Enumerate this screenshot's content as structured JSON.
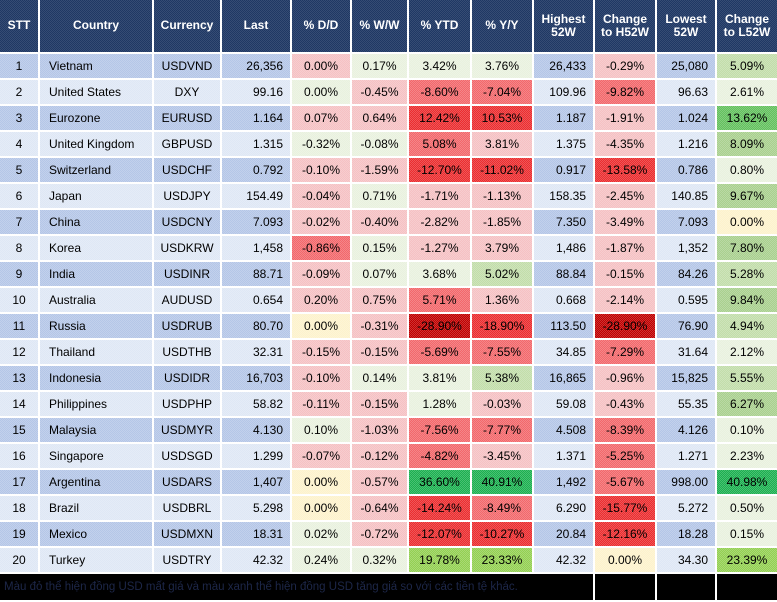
{
  "palette": {
    "header_bg": "#1F3864",
    "row_odd": "#B4C6E7",
    "row_even": "#DEE7F5",
    "r0": "#F5C1C3",
    "r1": "#F2686B",
    "r2": "#EB2D2F",
    "r3": "#C00000",
    "g0": "#E9F1DE",
    "g1": "#C2DDAA",
    "g2": "#A9D08E",
    "g3": "#1CB050",
    "g4": "#63C15E",
    "lime": "#93D052",
    "y0": "#FDF2CC"
  },
  "footer": {
    "note": "Màu đỏ thể hiện đồng USD mất giá và màu xanh thể hiện đồng USD tăng giá so với các tiền tệ khác."
  },
  "chart_data": {
    "type": "table",
    "columns": [
      "STT",
      "Country",
      "Currency",
      "Last",
      "% D/D",
      "% W/W",
      "% YTD",
      "% Y/Y",
      "Highest 52W",
      "Change to H52W",
      "Lowest 52W",
      "Change to L52W"
    ],
    "rows": [
      {
        "values": [
          "1",
          "Vietnam",
          "USDVND",
          "26,356",
          "0.00%",
          "0.17%",
          "3.42%",
          "3.76%",
          "26,433",
          "-0.29%",
          "25,080",
          "5.09%"
        ],
        "heat": {
          "4": "r0",
          "5": "g0",
          "6": "g0",
          "7": "g0",
          "9": "r0",
          "11": "g1"
        }
      },
      {
        "values": [
          "2",
          "United States",
          "DXY",
          "99.16",
          "0.00%",
          "-0.45%",
          "-8.60%",
          "-7.04%",
          "109.96",
          "-9.82%",
          "96.63",
          "2.61%"
        ],
        "heat": {
          "4": "g0",
          "5": "r0",
          "6": "r1",
          "7": "r1",
          "9": "r1",
          "11": "g0"
        }
      },
      {
        "values": [
          "3",
          "Eurozone",
          "EURUSD",
          "1.164",
          "0.07%",
          "0.64%",
          "12.42%",
          "10.53%",
          "1.187",
          "-1.91%",
          "1.024",
          "13.62%"
        ],
        "heat": {
          "4": "r0",
          "5": "r0",
          "6": "r2",
          "7": "r2",
          "9": "r0",
          "11": "g4"
        }
      },
      {
        "values": [
          "4",
          "United Kingdom",
          "GBPUSD",
          "1.315",
          "-0.32%",
          "-0.08%",
          "5.08%",
          "3.81%",
          "1.375",
          "-4.35%",
          "1.216",
          "8.09%"
        ],
        "heat": {
          "4": "g0",
          "5": "g0",
          "6": "r1",
          "7": "r0",
          "9": "r0",
          "11": "g2"
        }
      },
      {
        "values": [
          "5",
          "Switzerland",
          "USDCHF",
          "0.792",
          "-0.10%",
          "-1.59%",
          "-12.70%",
          "-11.02%",
          "0.917",
          "-13.58%",
          "0.786",
          "0.80%"
        ],
        "heat": {
          "4": "r0",
          "5": "r0",
          "6": "r2",
          "7": "r2",
          "9": "r2",
          "11": "g0"
        }
      },
      {
        "values": [
          "6",
          "Japan",
          "USDJPY",
          "154.49",
          "-0.04%",
          "0.71%",
          "-1.71%",
          "-1.13%",
          "158.35",
          "-2.45%",
          "140.85",
          "9.67%"
        ],
        "heat": {
          "4": "r0",
          "5": "g0",
          "6": "r0",
          "7": "r0",
          "9": "r0",
          "11": "g2"
        }
      },
      {
        "values": [
          "7",
          "China",
          "USDCNY",
          "7.093",
          "-0.02%",
          "-0.40%",
          "-2.82%",
          "-1.85%",
          "7.350",
          "-3.49%",
          "7.093",
          "0.00%"
        ],
        "heat": {
          "4": "r0",
          "5": "r0",
          "6": "r0",
          "7": "r0",
          "9": "r0",
          "11": "y0"
        }
      },
      {
        "values": [
          "8",
          "Korea",
          "USDKRW",
          "1,458",
          "-0.86%",
          "0.15%",
          "-1.27%",
          "3.79%",
          "1,486",
          "-1.87%",
          "1,352",
          "7.80%"
        ],
        "heat": {
          "4": "r1",
          "5": "g0",
          "6": "r0",
          "7": "r0",
          "9": "r0",
          "11": "g2"
        }
      },
      {
        "values": [
          "9",
          "India",
          "USDINR",
          "88.71",
          "-0.09%",
          "0.07%",
          "3.68%",
          "5.02%",
          "88.84",
          "-0.15%",
          "84.26",
          "5.28%"
        ],
        "heat": {
          "4": "r0",
          "5": "g0",
          "6": "g0",
          "7": "g1",
          "9": "r0",
          "11": "g1"
        }
      },
      {
        "values": [
          "10",
          "Australia",
          "AUDUSD",
          "0.654",
          "0.20%",
          "0.75%",
          "5.71%",
          "1.36%",
          "0.668",
          "-2.14%",
          "0.595",
          "9.84%"
        ],
        "heat": {
          "4": "r0",
          "5": "r0",
          "6": "r1",
          "7": "r0",
          "9": "r0",
          "11": "g2"
        }
      },
      {
        "values": [
          "11",
          "Russia",
          "USDRUB",
          "80.70",
          "0.00%",
          "-0.31%",
          "-28.90%",
          "-18.90%",
          "113.50",
          "-28.90%",
          "76.90",
          "4.94%"
        ],
        "heat": {
          "4": "y0",
          "5": "r0",
          "6": "r3",
          "7": "r2",
          "9": "r3",
          "11": "g1"
        }
      },
      {
        "values": [
          "12",
          "Thailand",
          "USDTHB",
          "32.31",
          "-0.15%",
          "-0.15%",
          "-5.69%",
          "-7.55%",
          "34.85",
          "-7.29%",
          "31.64",
          "2.12%"
        ],
        "heat": {
          "4": "r0",
          "5": "r0",
          "6": "r1",
          "7": "r1",
          "9": "r1",
          "11": "g0"
        }
      },
      {
        "values": [
          "13",
          "Indonesia",
          "USDIDR",
          "16,703",
          "-0.10%",
          "0.14%",
          "3.81%",
          "5.38%",
          "16,865",
          "-0.96%",
          "15,825",
          "5.55%"
        ],
        "heat": {
          "4": "r0",
          "5": "g0",
          "6": "g0",
          "7": "g1",
          "9": "r0",
          "11": "g1"
        }
      },
      {
        "values": [
          "14",
          "Philippines",
          "USDPHP",
          "58.82",
          "-0.11%",
          "-0.15%",
          "1.28%",
          "-0.03%",
          "59.08",
          "-0.43%",
          "55.35",
          "6.27%"
        ],
        "heat": {
          "4": "r0",
          "5": "r0",
          "6": "g0",
          "7": "r0",
          "9": "r0",
          "11": "g2"
        }
      },
      {
        "values": [
          "15",
          "Malaysia",
          "USDMYR",
          "4.130",
          "0.10%",
          "-1.03%",
          "-7.56%",
          "-7.77%",
          "4.508",
          "-8.39%",
          "4.126",
          "0.10%"
        ],
        "heat": {
          "4": "g0",
          "5": "r0",
          "6": "r1",
          "7": "r1",
          "9": "r1",
          "11": "g0"
        }
      },
      {
        "values": [
          "16",
          "Singapore",
          "USDSGD",
          "1.299",
          "-0.07%",
          "-0.12%",
          "-4.82%",
          "-3.45%",
          "1.371",
          "-5.25%",
          "1.271",
          "2.23%"
        ],
        "heat": {
          "4": "r0",
          "5": "r0",
          "6": "r1",
          "7": "r0",
          "9": "r1",
          "11": "g0"
        }
      },
      {
        "values": [
          "17",
          "Argentina",
          "USDARS",
          "1,407",
          "0.00%",
          "-0.57%",
          "36.60%",
          "40.91%",
          "1,492",
          "-5.67%",
          "998.00",
          "40.98%"
        ],
        "heat": {
          "4": "y0",
          "5": "r0",
          "6": "g3",
          "7": "g3",
          "9": "r1",
          "11": "g3"
        }
      },
      {
        "values": [
          "18",
          "Brazil",
          "USDBRL",
          "5.298",
          "0.00%",
          "-0.64%",
          "-14.24%",
          "-8.49%",
          "6.290",
          "-15.77%",
          "5.272",
          "0.50%"
        ],
        "heat": {
          "4": "y0",
          "5": "r0",
          "6": "r2",
          "7": "r1",
          "9": "r2",
          "11": "g0"
        }
      },
      {
        "values": [
          "19",
          "Mexico",
          "USDMXN",
          "18.31",
          "0.02%",
          "-0.72%",
          "-12.07%",
          "-10.27%",
          "20.84",
          "-12.16%",
          "18.28",
          "0.15%"
        ],
        "heat": {
          "4": "g0",
          "5": "r0",
          "6": "r2",
          "7": "r2",
          "9": "r2",
          "11": "g0"
        }
      },
      {
        "values": [
          "20",
          "Turkey",
          "USDTRY",
          "42.32",
          "0.24%",
          "0.32%",
          "19.78%",
          "23.33%",
          "42.32",
          "0.00%",
          "34.30",
          "23.39%"
        ],
        "heat": {
          "4": "g0",
          "5": "g0",
          "6": "lime",
          "7": "lime",
          "9": "y0",
          "11": "lime"
        }
      }
    ]
  }
}
